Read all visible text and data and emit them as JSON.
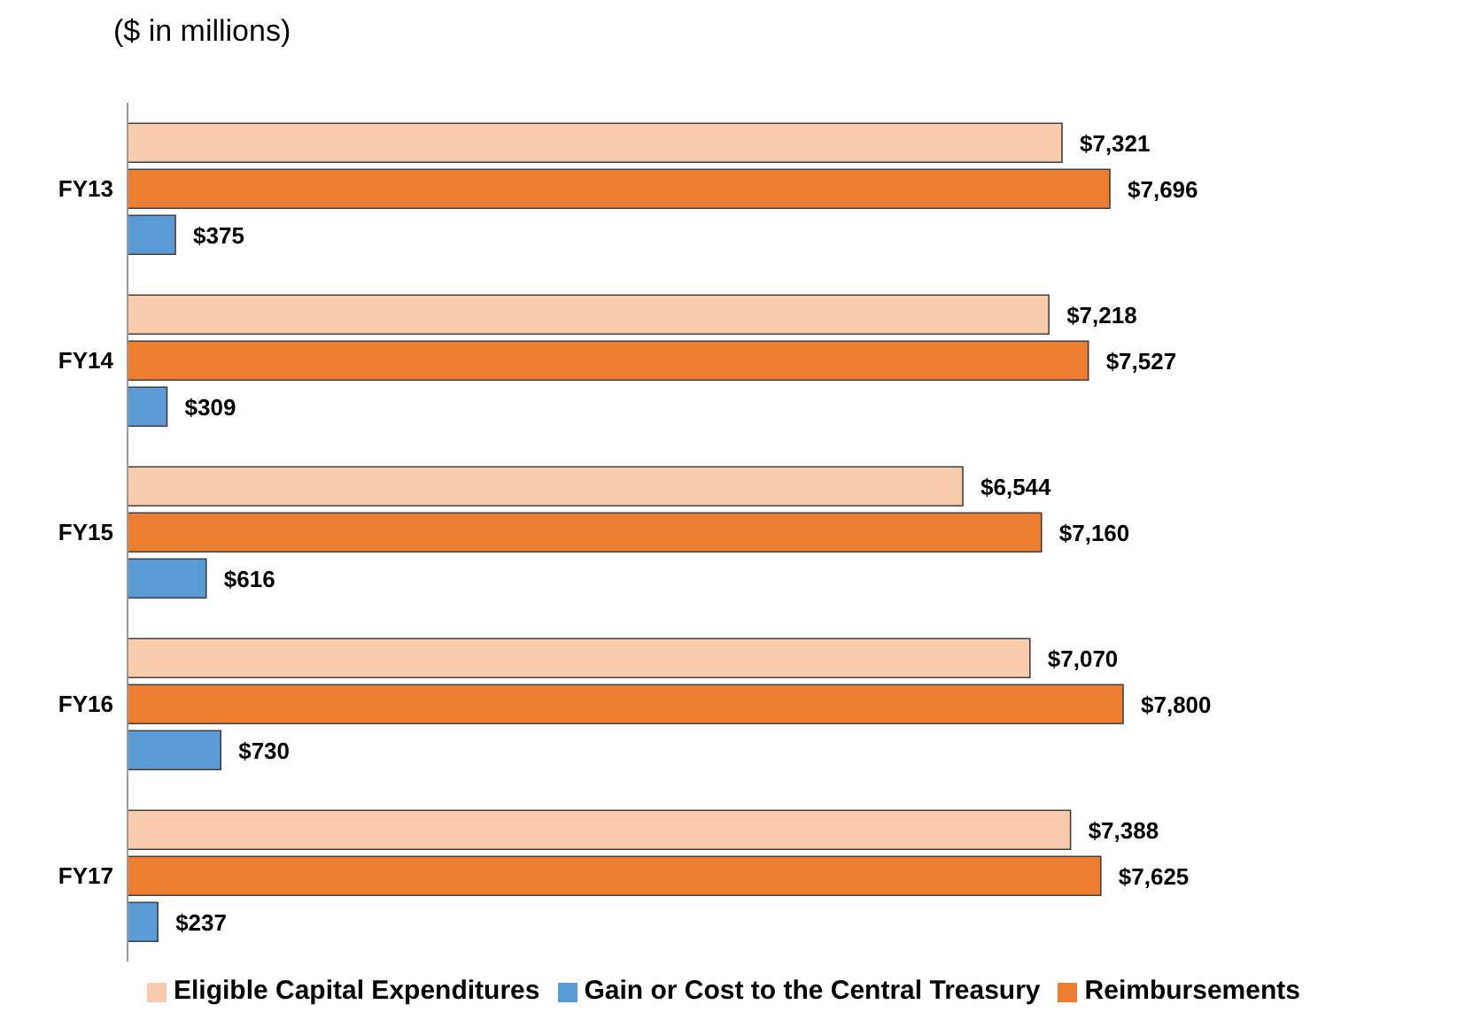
{
  "chart_data": {
    "type": "bar",
    "orientation": "horizontal",
    "title": "($ in millions)",
    "categories": [
      "FY13",
      "FY14",
      "FY15",
      "FY16",
      "FY17"
    ],
    "series": [
      {
        "name": "Eligible Capital Expenditures",
        "color": "#f8cbad",
        "values": [
          7321,
          7218,
          6544,
          7070,
          7388
        ],
        "value_labels": [
          "$7,321",
          "$7,218",
          "$6,544",
          "$7,070",
          "$7,388"
        ]
      },
      {
        "name": "Reimbursements",
        "color": "#ed7d31",
        "values": [
          7696,
          7527,
          7160,
          7800,
          7625
        ],
        "value_labels": [
          "$7,696",
          "$7,527",
          "$7,160",
          "$7,800",
          "$7,625"
        ]
      },
      {
        "name": "Gain or Cost to the Central Treasury",
        "color": "#5b9bd5",
        "values": [
          375,
          309,
          616,
          730,
          237
        ],
        "value_labels": [
          "$375",
          "$309",
          "$616",
          "$730",
          "$237"
        ]
      }
    ],
    "legend": "bottom",
    "grid": false
  }
}
